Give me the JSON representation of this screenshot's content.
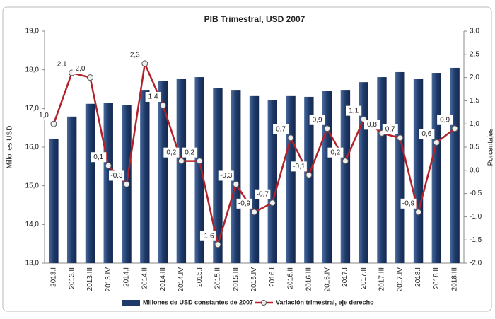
{
  "chart_data": {
    "type": "bar-line",
    "title": "PIB Trimestral, USD 2007",
    "ylabel": "Millones USD",
    "y2label": "Porcentajes",
    "categories": [
      "2013.I",
      "2013.II",
      "2013.III",
      "2013.IV",
      "2014.I",
      "2014.II",
      "2014.III",
      "2014.IV",
      "2015.I",
      "2015.II",
      "2015.III",
      "2015.IV",
      "2016.I",
      "2016.II",
      "2016.III",
      "2016.IV",
      "2017.I",
      "2017.II",
      "2017.III",
      "2017.IV",
      "2018.I",
      "2018.II",
      "2018.III"
    ],
    "series": [
      {
        "name": "Millones de USD constantes de 2007",
        "type": "bar",
        "color": "#1f3b6b",
        "values": [
          16.22,
          16.79,
          17.12,
          17.15,
          17.08,
          17.48,
          17.72,
          17.77,
          17.81,
          17.52,
          17.48,
          17.32,
          17.21,
          17.32,
          17.3,
          17.46,
          17.48,
          17.68,
          17.81,
          17.94,
          17.77,
          17.92,
          18.05
        ]
      },
      {
        "name": "Variación trimestral, eje derecho",
        "type": "line",
        "axis": "y2",
        "color": "#b3222a",
        "values": [
          1.0,
          2.1,
          2.0,
          0.1,
          -0.3,
          2.3,
          1.4,
          0.2,
          0.2,
          -1.6,
          -0.3,
          -0.9,
          -0.7,
          0.7,
          -0.1,
          0.9,
          0.2,
          1.1,
          0.8,
          0.7,
          -0.9,
          0.6,
          0.9
        ],
        "value_labels": [
          "1,0",
          "2,1",
          "2,0",
          "0,1",
          "-0,3",
          "2,3",
          "1,4",
          "0,2",
          "0,2",
          "-1,6",
          "-0,3",
          "-0,9",
          "-0,7",
          "0,7",
          "-0,1",
          "0,9",
          "0,2",
          "1,1",
          "0,8",
          "0,7",
          "-0,9",
          "0,6",
          "0,9"
        ]
      }
    ],
    "ylim": [
      13,
      19
    ],
    "yticks": [
      {
        "value": 13,
        "label": "13,0"
      },
      {
        "value": 14,
        "label": "14,0"
      },
      {
        "value": 15,
        "label": "15,0"
      },
      {
        "value": 16,
        "label": "16,0"
      },
      {
        "value": 17,
        "label": "17,0"
      },
      {
        "value": 18,
        "label": "18,0"
      },
      {
        "value": 19,
        "label": "19,0"
      }
    ],
    "y2lim": [
      -2,
      3
    ],
    "y2ticks": [
      {
        "value": -2,
        "label": "-2,0"
      },
      {
        "value": -1.5,
        "label": "-1,5"
      },
      {
        "value": -1,
        "label": "-1,0"
      },
      {
        "value": -0.5,
        "label": "-0,5"
      },
      {
        "value": 0,
        "label": "0,0"
      },
      {
        "value": 0.5,
        "label": "0,5"
      },
      {
        "value": 1,
        "label": "1,0"
      },
      {
        "value": 1.5,
        "label": "1,5"
      },
      {
        "value": 2,
        "label": "2,0"
      },
      {
        "value": 2.5,
        "label": "2,5"
      },
      {
        "value": 3,
        "label": "3,0"
      }
    ],
    "legend": "bottom"
  }
}
